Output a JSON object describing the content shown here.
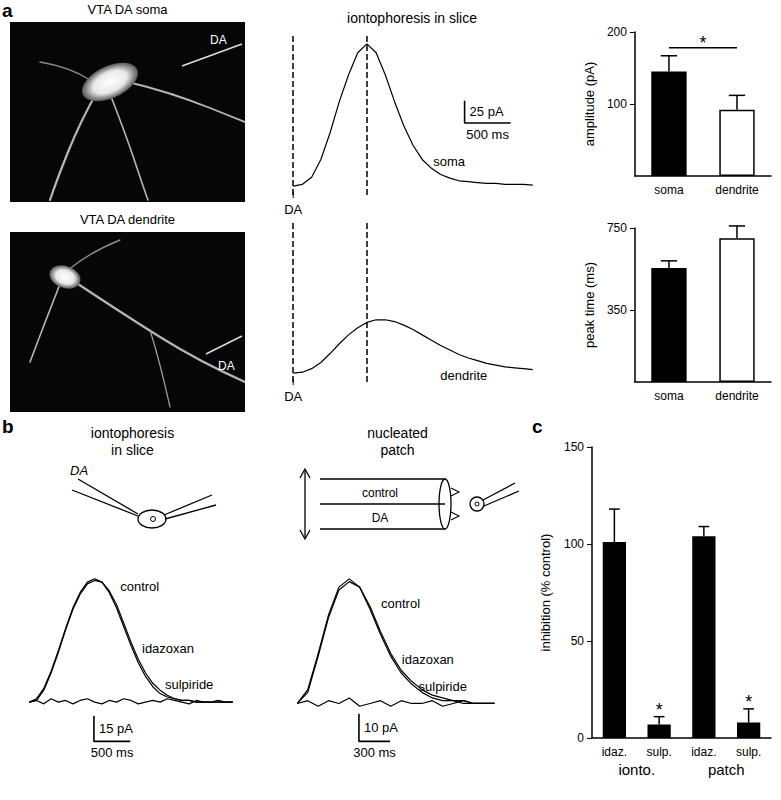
{
  "figure": {
    "panels": [
      "a",
      "b",
      "c"
    ],
    "images": [
      {
        "title": "VTA DA soma",
        "pipette_label": "DA"
      },
      {
        "title": "VTA DA dendrite",
        "pipette_label": "DA"
      }
    ],
    "schematics": [
      {
        "pipette_label": "DA"
      },
      {
        "channels": [
          "control",
          "DA"
        ]
      }
    ]
  },
  "chart_data": [
    {
      "type": "line",
      "title": "iontophoresis in slice",
      "x": [
        0,
        100,
        200,
        300,
        400,
        500,
        600,
        700,
        800,
        900,
        1000,
        1100,
        1200,
        1300,
        1400,
        1500,
        1600,
        1700,
        1800,
        1900,
        2000,
        2100,
        2200,
        2300,
        2400,
        2500,
        2600
      ],
      "series": [
        {
          "name": "soma",
          "color": "#000000",
          "values": [
            0,
            2,
            10,
            30,
            60,
            95,
            125,
            150,
            160,
            150,
            125,
            95,
            68,
            46,
            30,
            20,
            13,
            9,
            6,
            5,
            4,
            3,
            3,
            2,
            2,
            2,
            1
          ]
        },
        {
          "name": "dendrite",
          "color": "#000000",
          "values": [
            0,
            1,
            5,
            12,
            22,
            33,
            43,
            51,
            57,
            60,
            60,
            58,
            54,
            49,
            43,
            37,
            31,
            26,
            21,
            17,
            14,
            11,
            9,
            7,
            6,
            5,
            4
          ]
        }
      ],
      "stimulus": {
        "label": "DA",
        "x": 0
      },
      "vlines": [
        0,
        800
      ],
      "scale_bar": {
        "x": 500,
        "x_label": "500 ms",
        "y": 25,
        "y_label": "25 pA"
      },
      "xlim": [
        -100,
        2700
      ],
      "ylim": [
        -10,
        170
      ],
      "tick_labels": false
    },
    {
      "type": "bar",
      "categories": [
        "soma",
        "dendrite"
      ],
      "values": [
        145,
        92
      ],
      "errors": [
        22,
        20
      ],
      "colors": [
        "#000000",
        "#ffffff"
      ],
      "ylabel": "amplitude (pA)",
      "ylim": [
        0,
        200
      ],
      "yticks": [
        100,
        200
      ],
      "annotations": [
        {
          "text": "*",
          "between": [
            0,
            1
          ]
        }
      ],
      "grid": false
    },
    {
      "type": "bar",
      "categories": [
        "soma",
        "dendrite"
      ],
      "values": [
        555,
        700
      ],
      "errors": [
        35,
        60
      ],
      "colors": [
        "#000000",
        "#ffffff"
      ],
      "ylabel": "peak time (ms)",
      "ylim": [
        0,
        750
      ],
      "yticks": [
        350,
        750
      ],
      "grid": false
    },
    {
      "type": "line",
      "title": "iontophoresis\nin slice",
      "x": [
        0,
        100,
        200,
        300,
        400,
        500,
        600,
        700,
        800,
        900,
        1000,
        1100,
        1200,
        1300,
        1400,
        1500,
        1600,
        1700,
        1800,
        1900,
        2000,
        2100,
        2200,
        2300,
        2400,
        2500,
        2600,
        2700,
        2800
      ],
      "series": [
        {
          "name": "control",
          "color": "#000000",
          "values": [
            0,
            2,
            8,
            18,
            30,
            43,
            55,
            64,
            70,
            72,
            70,
            64,
            55,
            44,
            33,
            23,
            15,
            9,
            5,
            3,
            2,
            1,
            1,
            0,
            0,
            0,
            0,
            0,
            0
          ]
        },
        {
          "name": "idazoxan",
          "color": "#000000",
          "values": [
            0,
            1,
            7,
            17,
            29,
            42,
            54,
            63,
            69,
            71,
            70,
            65,
            57,
            46,
            35,
            25,
            17,
            11,
            7,
            4,
            2,
            1,
            1,
            0,
            0,
            0,
            0,
            0,
            0
          ]
        },
        {
          "name": "sulpiride",
          "color": "#000000",
          "values": [
            0,
            1,
            -1,
            2,
            0,
            1,
            -1,
            1,
            2,
            0,
            -1,
            1,
            0,
            2,
            1,
            -1,
            0,
            1,
            0,
            2,
            1,
            0,
            -1,
            1,
            0,
            0,
            1,
            0,
            0
          ]
        }
      ],
      "scale_bar": {
        "x": 500,
        "x_label": "500 ms",
        "y": 15,
        "y_label": "15 pA"
      },
      "xlim": [
        -100,
        2900
      ],
      "ylim": [
        -25,
        80
      ],
      "tick_labels": false
    },
    {
      "type": "line",
      "title": "nucleated\npatch",
      "x": [
        0,
        100,
        200,
        300,
        400,
        500,
        600,
        700,
        800,
        900,
        1000,
        1100,
        1200,
        1300,
        1400,
        1500,
        1600,
        1700,
        1800,
        1900
      ],
      "series": [
        {
          "name": "control",
          "color": "#000000",
          "values": [
            0,
            5,
            18,
            32,
            42,
            45,
            42,
            34,
            25,
            17,
            11,
            7,
            4,
            2,
            1,
            1,
            0,
            0,
            0,
            0
          ]
        },
        {
          "name": "idazoxan",
          "color": "#000000",
          "values": [
            0,
            4,
            17,
            31,
            41,
            44,
            42,
            35,
            26,
            18,
            12,
            8,
            5,
            3,
            2,
            1,
            1,
            0,
            0,
            0
          ]
        },
        {
          "name": "sulpiride",
          "color": "#000000",
          "values": [
            0,
            1,
            -1,
            1,
            0,
            2,
            -1,
            0,
            1,
            -1,
            1,
            0,
            0,
            1,
            -1,
            0,
            1,
            0,
            0,
            0
          ]
        }
      ],
      "scale_bar": {
        "x": 300,
        "x_label": "300 ms",
        "y": 10,
        "y_label": "10 pA"
      },
      "xlim": [
        -100,
        2000
      ],
      "ylim": [
        -15,
        50
      ],
      "tick_labels": false
    },
    {
      "type": "bar",
      "categories": [
        "idaz.",
        "sulp.",
        "idaz.",
        "sulp."
      ],
      "values": [
        101,
        7,
        104,
        8
      ],
      "errors": [
        17,
        4,
        5,
        7
      ],
      "color": "#000000",
      "ylabel": "inhibition (% control)",
      "ylim": [
        0,
        150
      ],
      "yticks": [
        0,
        50,
        100,
        150
      ],
      "groups": [
        {
          "label": "ionto.",
          "from": 0,
          "to": 1
        },
        {
          "label": "patch",
          "from": 2,
          "to": 3
        }
      ],
      "annotations": [
        {
          "text": "*",
          "at": 1
        },
        {
          "text": "*",
          "at": 3
        }
      ],
      "grid": false
    }
  ]
}
